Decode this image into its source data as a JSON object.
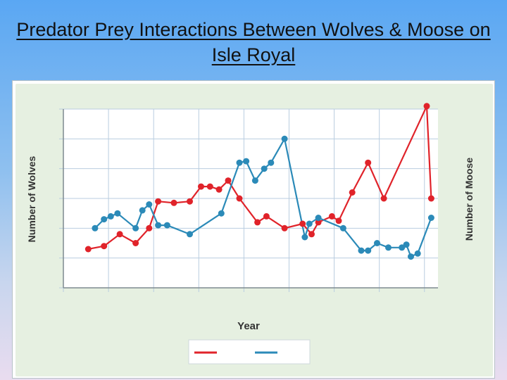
{
  "slide": {
    "title": "Predator Prey Interactions Between Wolves & Moose on Isle Royal"
  },
  "colors": {
    "wolves": "#e0232a",
    "moose": "#2b8ab8",
    "panel": "#e6f0e1",
    "grid": "#b9cde0"
  },
  "chart_data": {
    "type": "line",
    "xlabel": "Year",
    "ylabel": "Number of Wolves",
    "ylabel_right": "Number of Moose",
    "grid": true,
    "legend": "bottom-center",
    "x_ticks": [
      0,
      1,
      2,
      3,
      4,
      5,
      6,
      7,
      8
    ],
    "y_ticks": [
      0,
      1,
      2,
      3,
      4,
      5,
      6
    ],
    "xlim": [
      0,
      8.3
    ],
    "ylim": [
      0,
      6
    ],
    "series": [
      {
        "color": "#e0232a",
        "points": [
          [
            0.55,
            1.3
          ],
          [
            0.9,
            1.4
          ],
          [
            1.25,
            1.8
          ],
          [
            1.6,
            1.5
          ],
          [
            1.9,
            2.0
          ],
          [
            2.1,
            2.9
          ],
          [
            2.45,
            2.85
          ],
          [
            2.8,
            2.9
          ],
          [
            3.05,
            3.4
          ],
          [
            3.25,
            3.4
          ],
          [
            3.45,
            3.3
          ],
          [
            3.65,
            3.6
          ],
          [
            3.9,
            3.0
          ],
          [
            4.3,
            2.2
          ],
          [
            4.5,
            2.4
          ],
          [
            4.9,
            2.0
          ],
          [
            5.3,
            2.15
          ],
          [
            5.5,
            1.8
          ],
          [
            5.65,
            2.2
          ],
          [
            5.95,
            2.4
          ],
          [
            6.1,
            2.25
          ],
          [
            6.4,
            3.2
          ],
          [
            6.75,
            4.2
          ],
          [
            7.1,
            3.0
          ],
          [
            8.05,
            6.1
          ],
          [
            8.15,
            3.0
          ]
        ]
      },
      {
        "color": "#2b8ab8",
        "points": [
          [
            0.7,
            2.0
          ],
          [
            0.9,
            2.3
          ],
          [
            1.05,
            2.4
          ],
          [
            1.2,
            2.5
          ],
          [
            1.6,
            2.0
          ],
          [
            1.75,
            2.6
          ],
          [
            1.9,
            2.8
          ],
          [
            2.1,
            2.1
          ],
          [
            2.3,
            2.1
          ],
          [
            2.8,
            1.8
          ],
          [
            3.5,
            2.5
          ],
          [
            3.9,
            4.2
          ],
          [
            4.05,
            4.25
          ],
          [
            4.25,
            3.6
          ],
          [
            4.45,
            4.0
          ],
          [
            4.6,
            4.2
          ],
          [
            4.9,
            5.0
          ],
          [
            5.35,
            1.7
          ],
          [
            5.45,
            2.15
          ],
          [
            5.65,
            2.35
          ],
          [
            6.2,
            2.0
          ],
          [
            6.6,
            1.25
          ],
          [
            6.75,
            1.25
          ],
          [
            6.95,
            1.5
          ],
          [
            7.2,
            1.35
          ],
          [
            7.5,
            1.35
          ],
          [
            7.6,
            1.45
          ],
          [
            7.7,
            1.05
          ],
          [
            7.85,
            1.15
          ],
          [
            8.15,
            2.35
          ]
        ]
      }
    ]
  }
}
